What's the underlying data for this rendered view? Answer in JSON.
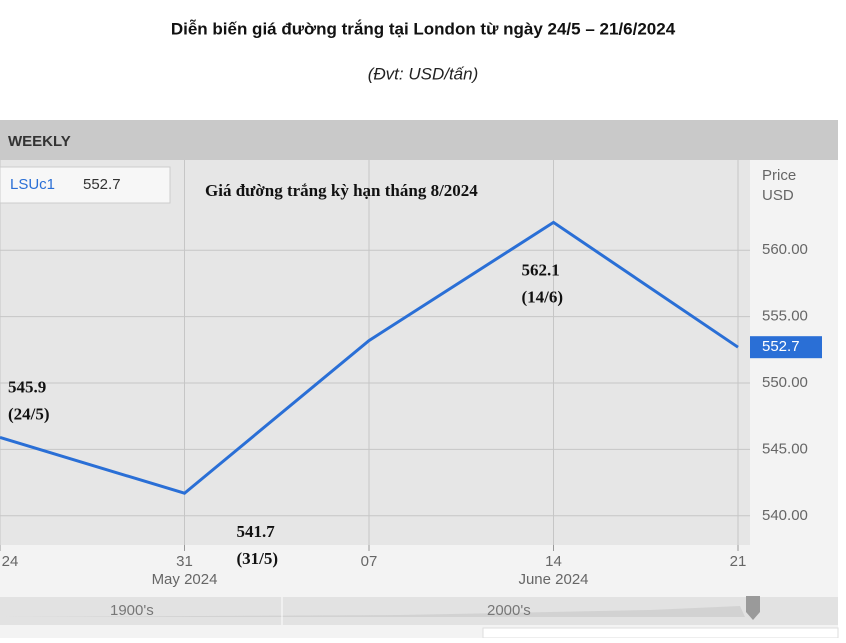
{
  "chart_data": {
    "type": "line",
    "title": "Diễn biến giá đường trắng tại London từ ngày 24/5 – 21/6/2024",
    "subtitle": "(Đvt: USD/tấn)",
    "period": "WEEKLY",
    "inner_title": "Giá đường trắng kỳ hạn tháng 8/2024",
    "y_label": "Price",
    "y_unit": "USD",
    "categories": [
      "24",
      "31",
      "07",
      "14",
      "21"
    ],
    "x_groups": [
      {
        "label": "May 2024",
        "index": 1
      },
      {
        "label": "June 2024",
        "index": 3
      }
    ],
    "series": [
      {
        "name": "LSUc1",
        "color": "#2a6fd6",
        "values": [
          545.9,
          541.7,
          553.2,
          562.1,
          552.7
        ]
      }
    ],
    "date_labels": [
      "(24/5)",
      "(31/5)",
      null,
      "(14/6)",
      null
    ],
    "ylim": [
      537.8,
      566.8
    ],
    "yticks": [
      {
        "value": 540,
        "label": "540.00"
      },
      {
        "value": 545,
        "label": "545.00"
      },
      {
        "value": 550,
        "label": "550.00"
      },
      {
        "value": 555,
        "label": "555.00"
      },
      {
        "value": 560,
        "label": "560.00"
      }
    ],
    "grid": true,
    "navigator_labels": [
      "1900's",
      "2000's"
    ]
  }
}
